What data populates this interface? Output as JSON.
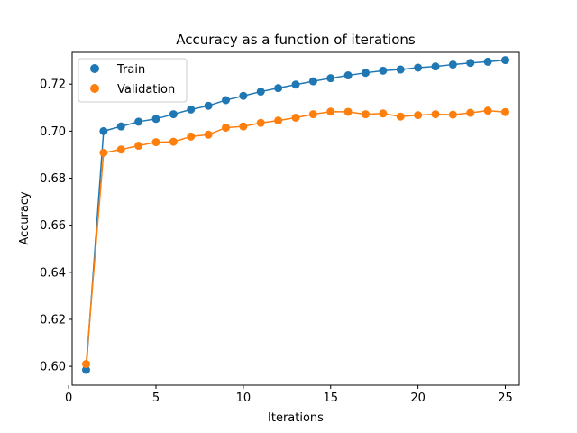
{
  "chart_data": {
    "type": "line",
    "title": "Accuracy as a function of iterations",
    "xlabel": "Iterations",
    "ylabel": "Accuracy",
    "xlim": [
      0.2,
      25.8
    ],
    "ylim": [
      0.592,
      0.7335
    ],
    "xticks": [
      0,
      5,
      10,
      15,
      20,
      25
    ],
    "yticks": [
      0.6,
      0.62,
      0.64,
      0.66,
      0.68,
      0.7,
      0.72
    ],
    "grid": false,
    "legend_position": "top-left",
    "x": [
      1,
      2,
      3,
      4,
      5,
      6,
      7,
      8,
      9,
      10,
      11,
      12,
      13,
      14,
      15,
      16,
      17,
      18,
      19,
      20,
      21,
      22,
      23,
      24,
      25
    ],
    "series": [
      {
        "name": "Train",
        "color": "#1f77b4",
        "values": [
          0.5985,
          0.7,
          0.702,
          0.704,
          0.7052,
          0.7072,
          0.7092,
          0.7108,
          0.7132,
          0.715,
          0.7168,
          0.7183,
          0.7198,
          0.7212,
          0.7225,
          0.7237,
          0.7248,
          0.7257,
          0.7262,
          0.727,
          0.7275,
          0.7283,
          0.729,
          0.7295,
          0.7302
        ]
      },
      {
        "name": "Validation",
        "color": "#ff7f0e",
        "values": [
          0.601,
          0.6908,
          0.6922,
          0.6938,
          0.6953,
          0.6955,
          0.6977,
          0.6985,
          0.7015,
          0.702,
          0.7035,
          0.7045,
          0.7057,
          0.7072,
          0.7083,
          0.7082,
          0.7072,
          0.7075,
          0.7062,
          0.7068,
          0.7072,
          0.707,
          0.7078,
          0.7087,
          0.7081
        ]
      }
    ]
  }
}
